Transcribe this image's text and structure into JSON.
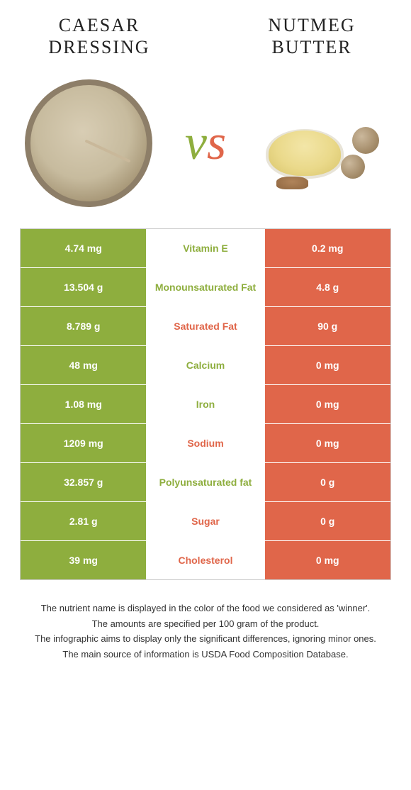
{
  "colors": {
    "left": "#8eae3e",
    "right": "#e0664a",
    "label_left_winner": "#8eae3e",
    "label_right_winner": "#e0664a"
  },
  "food_left": {
    "name": "Caesar dressing"
  },
  "food_right": {
    "name": "Nutmeg butter"
  },
  "vs_label": "vs",
  "rows": [
    {
      "left": "4.74 mg",
      "label": "Vitamin E",
      "right": "0.2 mg",
      "winner": "left"
    },
    {
      "left": "13.504 g",
      "label": "Monounsaturated Fat",
      "right": "4.8 g",
      "winner": "left"
    },
    {
      "left": "8.789 g",
      "label": "Saturated Fat",
      "right": "90 g",
      "winner": "right"
    },
    {
      "left": "48 mg",
      "label": "Calcium",
      "right": "0 mg",
      "winner": "left"
    },
    {
      "left": "1.08 mg",
      "label": "Iron",
      "right": "0 mg",
      "winner": "left"
    },
    {
      "left": "1209 mg",
      "label": "Sodium",
      "right": "0 mg",
      "winner": "right"
    },
    {
      "left": "32.857 g",
      "label": "Polyunsaturated fat",
      "right": "0 g",
      "winner": "left"
    },
    {
      "left": "2.81 g",
      "label": "Sugar",
      "right": "0 g",
      "winner": "right"
    },
    {
      "left": "39 mg",
      "label": "Cholesterol",
      "right": "0 mg",
      "winner": "right"
    }
  ],
  "footer": [
    "The nutrient name is displayed in the color of the food we considered as 'winner'.",
    "The amounts are specified per 100 gram of the product.",
    "The infographic aims to display only the significant differences, ignoring minor ones.",
    "The main source of information is USDA Food Composition Database."
  ]
}
